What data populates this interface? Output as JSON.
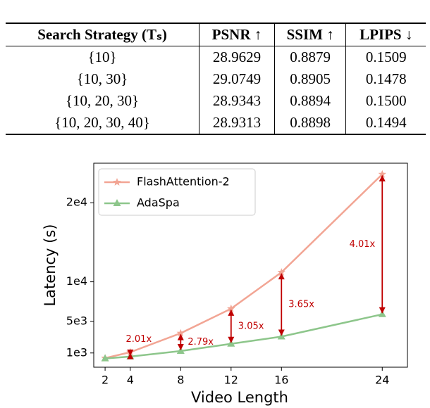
{
  "table": {
    "header": [
      "Search Strategy (Tₛ)",
      "PSNR ↑",
      "SSIM ↑",
      "LPIPS ↓"
    ],
    "rows": [
      [
        "{10}",
        "28.9629",
        "0.8879",
        "0.1509"
      ],
      [
        "{10, 30}",
        "29.0749",
        "0.8905",
        "0.1478"
      ],
      [
        "{10, 20, 30}",
        "28.9343",
        "0.8894",
        "0.1500"
      ],
      [
        "{10, 20, 30, 40}",
        "28.9313",
        "0.8898",
        "0.1494"
      ]
    ]
  },
  "chart_data": {
    "type": "line",
    "x_label": "Video Length",
    "y_label": "Latency (s)",
    "x": [
      2,
      4,
      8,
      12,
      16,
      24
    ],
    "series": [
      {
        "name": "FlashAttention-2",
        "color": "#f2a594",
        "marker": "star",
        "values": [
          350,
          1100,
          3500,
          6600,
          11200,
          23600
        ]
      },
      {
        "name": "AdaSpa",
        "color": "#8dc68b",
        "marker": "triangle",
        "values": [
          300,
          550,
          1250,
          2160,
          3070,
          5890
        ]
      }
    ],
    "xlim": [
      1.1,
      26.0
    ],
    "xticks": [
      2,
      4,
      8,
      12,
      16,
      24
    ],
    "ylim": [
      -800,
      25000
    ],
    "yticks": [
      {
        "value": 1000,
        "label": "1e3"
      },
      {
        "value": 5000,
        "label": "5e3"
      },
      {
        "value": 10000,
        "label": "1e4"
      },
      {
        "value": 20000,
        "label": "2e4"
      }
    ],
    "legend": "upper left",
    "annotation_color": "#c00000",
    "annotations": [
      {
        "x": 4,
        "text": "2.01x"
      },
      {
        "x": 8,
        "text": "2.79x"
      },
      {
        "x": 12,
        "text": "3.05x"
      },
      {
        "x": 16,
        "text": "3.65x"
      },
      {
        "x": 24,
        "text": "4.01x"
      }
    ]
  }
}
